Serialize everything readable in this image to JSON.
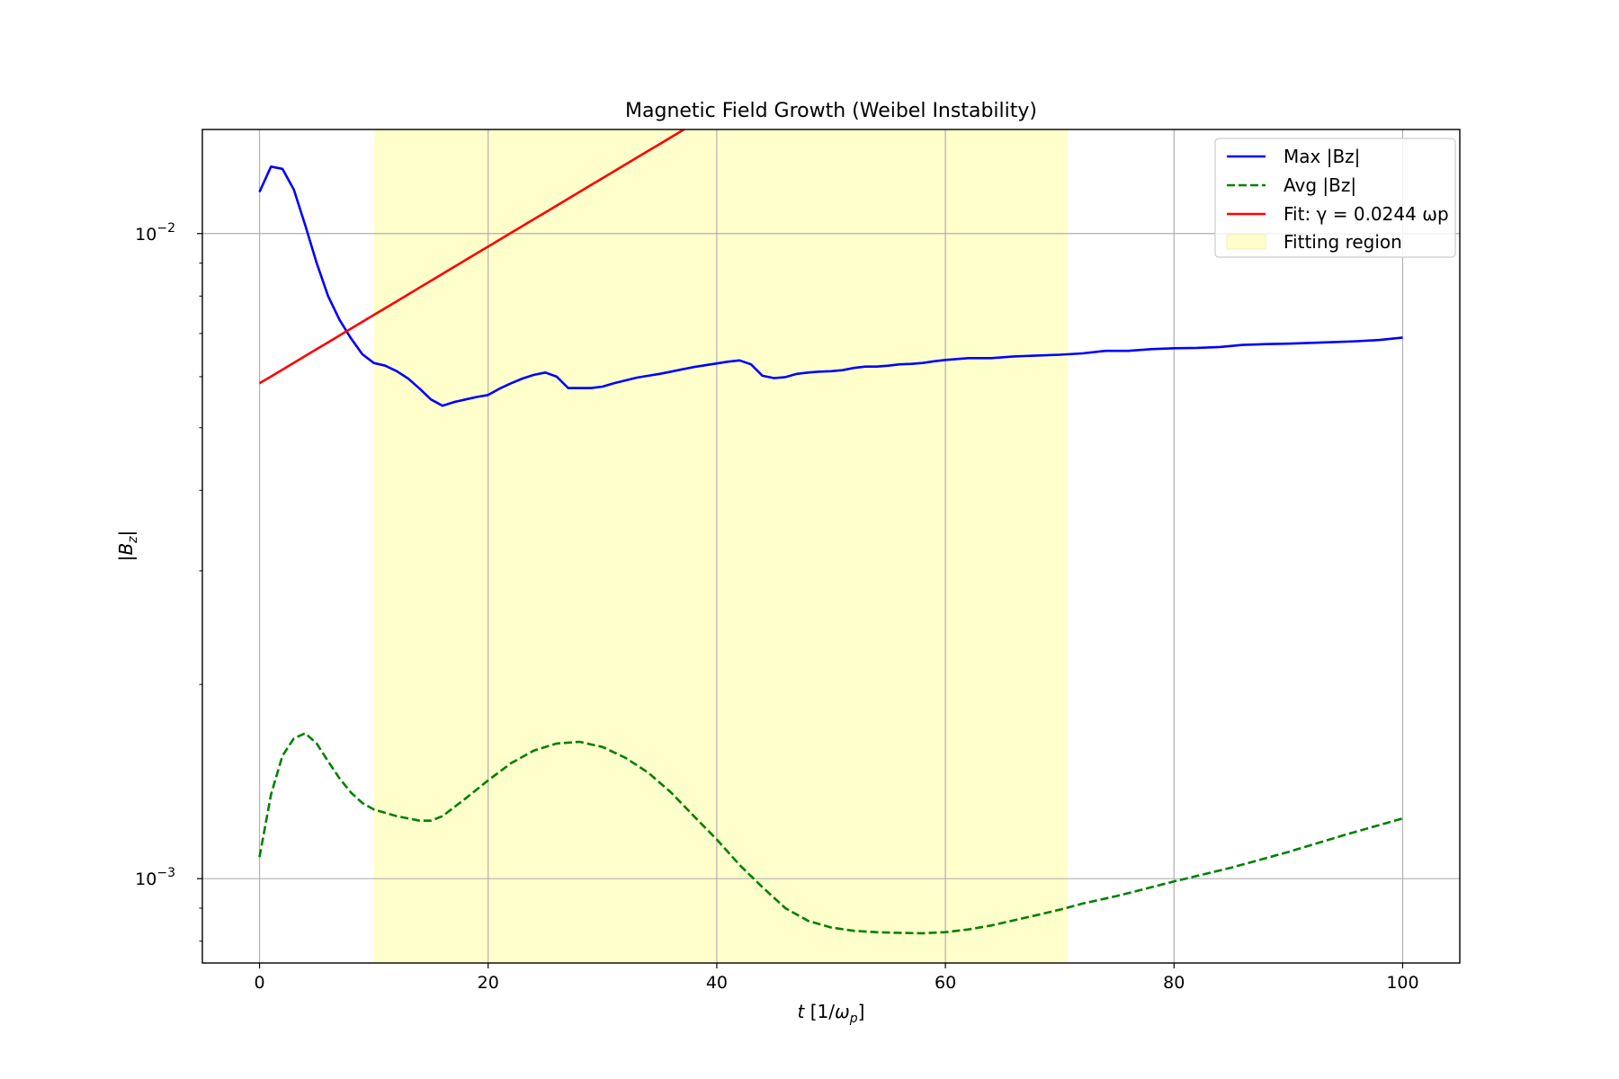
{
  "chart_data": {
    "type": "line",
    "title": "Magnetic Field Growth (Weibel Instability)",
    "xlabel": {
      "var": "t",
      "open": "[1/",
      "sym": "ω",
      "sub": "p",
      "close": "]"
    },
    "ylabel": {
      "open": "|",
      "var": "B",
      "sub": "z",
      "close": "|"
    },
    "xlim": [
      -5,
      105
    ],
    "ylim": [
      0.00074,
      0.0145
    ],
    "yscale": "log",
    "grid": true,
    "legend_position": "top-right",
    "x_ticks": [
      {
        "value": 0,
        "label": "0"
      },
      {
        "value": 20,
        "label": "20"
      },
      {
        "value": 40,
        "label": "40"
      },
      {
        "value": 60,
        "label": "60"
      },
      {
        "value": 80,
        "label": "80"
      },
      {
        "value": 100,
        "label": "100"
      }
    ],
    "y_ticks": [
      {
        "value": 0.01,
        "base": "10",
        "exp": "−2"
      },
      {
        "value": 0.001,
        "base": "10",
        "exp": "−3"
      }
    ],
    "y_minor_ticks": [
      0.0008,
      0.0009,
      0.002,
      0.003,
      0.004,
      0.005,
      0.006,
      0.007,
      0.008,
      0.009
    ],
    "fitting_region": {
      "label": "Fitting region",
      "x_start": 10,
      "x_end": 70.7,
      "color": "#ffffcc"
    },
    "series": [
      {
        "name": "Max |Bz|",
        "color": "#0000ff",
        "style": "solid",
        "x": [
          0,
          1,
          2,
          3,
          4,
          5,
          6,
          7,
          8,
          9,
          10,
          11,
          12,
          13,
          14,
          15,
          16,
          17,
          18,
          19,
          20,
          21,
          22,
          23,
          24,
          25,
          26,
          27,
          28,
          29,
          30,
          31,
          32,
          33,
          34,
          35,
          36,
          37,
          38,
          39,
          40,
          41,
          42,
          43,
          44,
          45,
          46,
          47,
          48,
          49,
          50,
          51,
          52,
          53,
          54,
          55,
          56,
          57,
          58,
          59,
          60,
          62,
          64,
          66,
          68,
          70,
          72,
          74,
          76,
          78,
          80,
          82,
          84,
          86,
          88,
          90,
          92,
          94,
          96,
          98,
          100
        ],
        "y": [
          0.0116,
          0.0127,
          0.0126,
          0.0117,
          0.0103,
          0.009,
          0.008,
          0.00735,
          0.00688,
          0.0065,
          0.0063,
          0.00624,
          0.00612,
          0.00596,
          0.00575,
          0.00553,
          0.00541,
          0.00548,
          0.00553,
          0.00558,
          0.00562,
          0.00575,
          0.00586,
          0.00596,
          0.00604,
          0.00609,
          0.006,
          0.00576,
          0.00576,
          0.00576,
          0.00579,
          0.00586,
          0.00592,
          0.00598,
          0.00602,
          0.00606,
          0.00611,
          0.00616,
          0.00621,
          0.00625,
          0.00629,
          0.00633,
          0.00636,
          0.00627,
          0.00602,
          0.00597,
          0.00599,
          0.00606,
          0.00609,
          0.00611,
          0.00612,
          0.00614,
          0.00619,
          0.00622,
          0.00622,
          0.00624,
          0.00627,
          0.00628,
          0.0063,
          0.00634,
          0.00637,
          0.00641,
          0.00641,
          0.00645,
          0.00647,
          0.00649,
          0.00652,
          0.00658,
          0.00658,
          0.00662,
          0.00664,
          0.00665,
          0.00667,
          0.00672,
          0.00674,
          0.00675,
          0.00677,
          0.00679,
          0.00681,
          0.00684,
          0.0069
        ]
      },
      {
        "name": "Avg |Bz|",
        "color": "#008000",
        "style": "dashed",
        "x": [
          0,
          1,
          2,
          3,
          4,
          5,
          6,
          7,
          8,
          9,
          10,
          12,
          14,
          15,
          16,
          18,
          20,
          22,
          24,
          26,
          28,
          30,
          32,
          34,
          36,
          38,
          40,
          42,
          44,
          46,
          48,
          50,
          52,
          54,
          56,
          58,
          60,
          62,
          64,
          66,
          68,
          70,
          72,
          75,
          80,
          85,
          90,
          95,
          100
        ],
        "y": [
          0.00108,
          0.00135,
          0.00155,
          0.00165,
          0.00168,
          0.00162,
          0.00152,
          0.00143,
          0.00136,
          0.00131,
          0.00128,
          0.00125,
          0.00123,
          0.00123,
          0.00125,
          0.00133,
          0.00142,
          0.00151,
          0.00158,
          0.00162,
          0.00163,
          0.0016,
          0.00154,
          0.00146,
          0.00136,
          0.00125,
          0.00115,
          0.00105,
          0.00097,
          0.0009,
          0.00086,
          0.00084,
          0.00083,
          0.000826,
          0.000824,
          0.000823,
          0.000826,
          0.000834,
          0.000846,
          0.000862,
          0.000878,
          0.000895,
          0.000915,
          0.00094,
          0.00099,
          0.00104,
          0.0011,
          0.00117,
          0.00124
        ]
      },
      {
        "name": "Fit: γ = 0.0244 ωp",
        "color": "#ff0000",
        "style": "solid",
        "fit": {
          "a": 0.00586,
          "gamma": 0.0244,
          "x_start": 0,
          "x_end": 100
        }
      }
    ]
  }
}
